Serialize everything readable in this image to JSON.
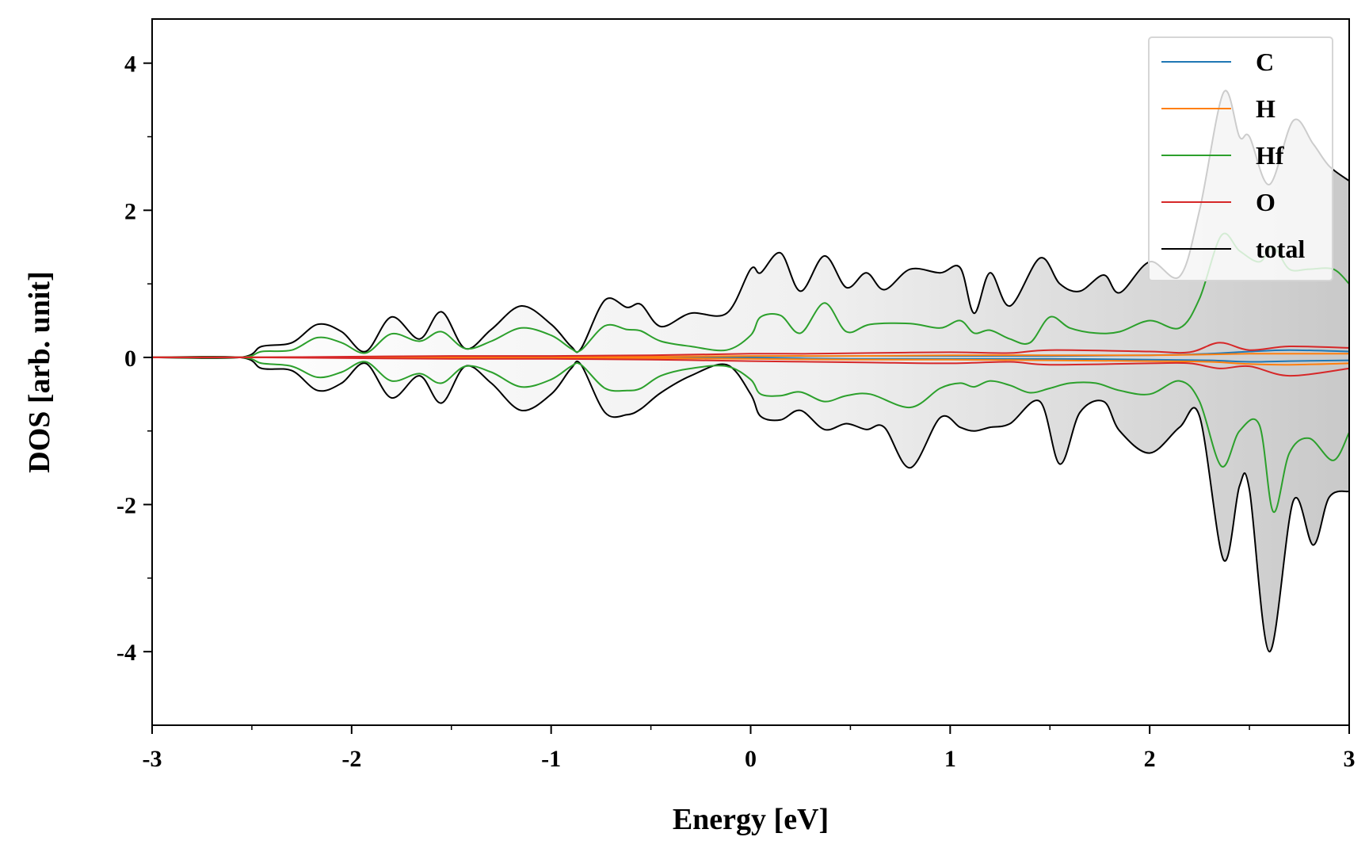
{
  "chart_data": {
    "type": "line",
    "xlabel": "Energy [eV]",
    "ylabel": "DOS [arb. unit]",
    "xlim": [
      -3,
      3
    ],
    "ylim": [
      -5,
      4.6
    ],
    "x_ticks": [
      -3,
      -2,
      -1,
      0,
      1,
      2,
      3
    ],
    "x_tick_labels": [
      "-3",
      "-2",
      "-1",
      "0",
      "1",
      "2",
      "3"
    ],
    "y_ticks": [
      4,
      2,
      0,
      -2,
      -4
    ],
    "y_tick_labels": [
      "4",
      "2",
      "0",
      "-2",
      "-4"
    ],
    "grid": false,
    "legend_position": "top-right",
    "total_fill": true,
    "series": [
      {
        "name": "C",
        "color": "#1f77b4",
        "x": [
          -3,
          -2.5,
          -1.5,
          -0.5,
          0,
          0.5,
          1.0,
          1.5,
          2.0,
          2.3,
          2.5,
          2.7,
          3.0
        ],
        "up": [
          0,
          0,
          0.005,
          0.01,
          0.01,
          0.02,
          0.02,
          0.02,
          0.03,
          0.05,
          0.08,
          0.1,
          0.08
        ],
        "down": [
          0,
          0,
          -0.005,
          -0.01,
          -0.01,
          -0.02,
          -0.02,
          -0.02,
          -0.03,
          -0.04,
          -0.06,
          -0.05,
          -0.04
        ]
      },
      {
        "name": "H",
        "color": "#ff7f0e",
        "x": [
          -3,
          -2.5,
          -1.5,
          -0.5,
          0,
          0.5,
          1.0,
          1.5,
          2.0,
          2.3,
          2.5,
          2.7,
          3.0
        ],
        "up": [
          0,
          0,
          0.005,
          0.01,
          0.02,
          0.02,
          0.03,
          0.03,
          0.03,
          0.04,
          0.05,
          0.05,
          0.05
        ],
        "down": [
          0,
          0,
          -0.005,
          -0.01,
          -0.02,
          -0.03,
          -0.03,
          -0.04,
          -0.05,
          -0.06,
          -0.09,
          -0.1,
          -0.08
        ]
      },
      {
        "name": "Hf",
        "color": "#2ca02c",
        "x": [
          -3,
          -2.56,
          -2.45,
          -2.3,
          -2.17,
          -2.05,
          -1.93,
          -1.8,
          -1.66,
          -1.55,
          -1.43,
          -1.3,
          -1.15,
          -1.0,
          -0.9,
          -0.85,
          -0.73,
          -0.62,
          -0.55,
          -0.45,
          -0.3,
          -0.12,
          0.0,
          0.05,
          0.15,
          0.25,
          0.37,
          0.48,
          0.6,
          0.8,
          0.95,
          1.05,
          1.12,
          1.2,
          1.3,
          1.4,
          1.5,
          1.6,
          1.73,
          1.85,
          2.0,
          2.15,
          2.25,
          2.36,
          2.45,
          2.55,
          2.62,
          2.7,
          2.8,
          2.92,
          3.0
        ],
        "up": [
          0,
          0,
          0.08,
          0.1,
          0.27,
          0.2,
          0.06,
          0.32,
          0.22,
          0.35,
          0.12,
          0.22,
          0.4,
          0.3,
          0.12,
          0.1,
          0.43,
          0.38,
          0.36,
          0.22,
          0.15,
          0.1,
          0.3,
          0.55,
          0.57,
          0.33,
          0.74,
          0.35,
          0.45,
          0.46,
          0.4,
          0.5,
          0.33,
          0.37,
          0.25,
          0.2,
          0.55,
          0.4,
          0.33,
          0.35,
          0.5,
          0.4,
          0.8,
          1.66,
          1.45,
          1.3,
          1.5,
          1.2,
          1.2,
          1.2,
          1.0
        ],
        "down": [
          0,
          0,
          -0.08,
          -0.12,
          -0.27,
          -0.2,
          -0.06,
          -0.32,
          -0.22,
          -0.35,
          -0.12,
          -0.2,
          -0.4,
          -0.3,
          -0.12,
          -0.1,
          -0.42,
          -0.45,
          -0.42,
          -0.25,
          -0.15,
          -0.12,
          -0.3,
          -0.5,
          -0.52,
          -0.47,
          -0.6,
          -0.52,
          -0.5,
          -0.68,
          -0.42,
          -0.35,
          -0.4,
          -0.32,
          -0.38,
          -0.48,
          -0.42,
          -0.35,
          -0.35,
          -0.45,
          -0.5,
          -0.32,
          -0.6,
          -1.48,
          -1.0,
          -0.92,
          -2.1,
          -1.3,
          -1.1,
          -1.4,
          -1.02
        ]
      },
      {
        "name": "O",
        "color": "#d62728",
        "x": [
          -3,
          -2.5,
          -2.0,
          -1.5,
          -1.0,
          -0.5,
          0.0,
          0.3,
          0.6,
          1.0,
          1.3,
          1.5,
          2.0,
          2.2,
          2.35,
          2.5,
          2.7,
          3.0
        ],
        "up": [
          0,
          0,
          0.01,
          0.02,
          0.02,
          0.03,
          0.05,
          0.05,
          0.06,
          0.07,
          0.06,
          0.1,
          0.08,
          0.07,
          0.2,
          0.1,
          0.15,
          0.13
        ],
        "down": [
          0,
          0,
          -0.01,
          -0.02,
          -0.02,
          -0.03,
          -0.05,
          -0.06,
          -0.07,
          -0.08,
          -0.06,
          -0.1,
          -0.08,
          -0.08,
          -0.15,
          -0.12,
          -0.25,
          -0.15
        ]
      },
      {
        "name": "total",
        "color": "#000000",
        "x": [
          -3,
          -2.56,
          -2.45,
          -2.3,
          -2.17,
          -2.05,
          -1.93,
          -1.8,
          -1.66,
          -1.55,
          -1.43,
          -1.3,
          -1.15,
          -1.0,
          -0.9,
          -0.85,
          -0.73,
          -0.62,
          -0.55,
          -0.45,
          -0.3,
          -0.12,
          0.0,
          0.05,
          0.15,
          0.25,
          0.37,
          0.48,
          0.58,
          0.67,
          0.8,
          0.95,
          1.05,
          1.12,
          1.2,
          1.3,
          1.45,
          1.55,
          1.65,
          1.77,
          1.85,
          2.0,
          2.15,
          2.25,
          2.37,
          2.45,
          2.5,
          2.6,
          2.72,
          2.82,
          2.9,
          3.0
        ],
        "up": [
          0,
          0,
          0.15,
          0.2,
          0.45,
          0.35,
          0.08,
          0.55,
          0.25,
          0.62,
          0.12,
          0.38,
          0.7,
          0.45,
          0.15,
          0.12,
          0.78,
          0.68,
          0.72,
          0.42,
          0.6,
          0.6,
          1.2,
          1.15,
          1.42,
          0.9,
          1.38,
          0.95,
          1.15,
          0.92,
          1.2,
          1.15,
          1.22,
          0.6,
          1.15,
          0.7,
          1.35,
          1.0,
          0.9,
          1.12,
          0.88,
          1.3,
          1.1,
          2.0,
          3.6,
          3.0,
          3.0,
          2.35,
          3.22,
          2.9,
          2.6,
          2.4
        ],
        "down": [
          0,
          0,
          -0.15,
          -0.18,
          -0.45,
          -0.35,
          -0.08,
          -0.55,
          -0.25,
          -0.62,
          -0.12,
          -0.35,
          -0.72,
          -0.5,
          -0.15,
          -0.1,
          -0.75,
          -0.78,
          -0.7,
          -0.48,
          -0.25,
          -0.1,
          -0.5,
          -0.8,
          -0.85,
          -0.72,
          -0.98,
          -0.9,
          -0.98,
          -0.95,
          -1.5,
          -0.82,
          -0.95,
          -1.0,
          -0.95,
          -0.9,
          -0.6,
          -1.45,
          -0.75,
          -0.6,
          -1.0,
          -1.3,
          -0.95,
          -0.8,
          -2.75,
          -1.75,
          -1.8,
          -4.0,
          -1.95,
          -2.55,
          -1.9,
          -1.82
        ]
      }
    ]
  }
}
